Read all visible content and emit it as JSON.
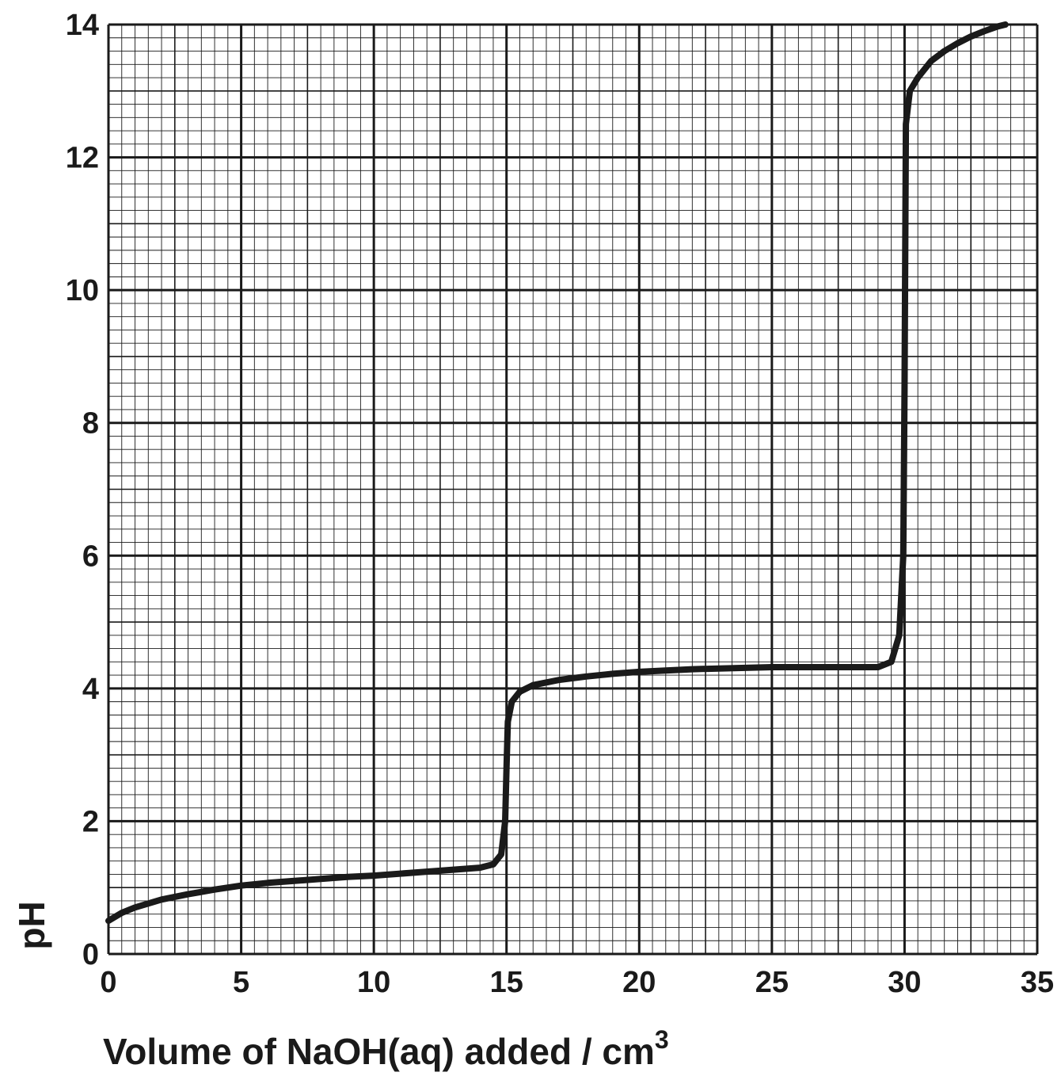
{
  "chart_data": {
    "type": "line",
    "title": "",
    "xlabel": "Volume of NaOH(aq) added / cm",
    "xlabel_superscript": "3",
    "ylabel": "pH",
    "xlim": [
      0,
      35
    ],
    "ylim": [
      0,
      14
    ],
    "x_ticks": [
      "0",
      "5",
      "10",
      "15",
      "20",
      "25",
      "30",
      "35"
    ],
    "y_ticks": [
      "0",
      "2",
      "4",
      "6",
      "8",
      "10",
      "12",
      "14"
    ],
    "grid": "graph paper (major every 5 cm3 / 2 pH, minor every 0.5 cm3 / 0.2 pH)",
    "line_color": "#1a1a1a",
    "series": [
      {
        "x": [
          0,
          0.5,
          1,
          2,
          3,
          4,
          5,
          6,
          7,
          8,
          9,
          10,
          11,
          12,
          13,
          14,
          14.5,
          14.8,
          14.95,
          15,
          15.05,
          15.2,
          15.5,
          16,
          17,
          18,
          19,
          20,
          21,
          22,
          23,
          24,
          25,
          26,
          27,
          28,
          29,
          29.5,
          29.8,
          29.95,
          30,
          30.05,
          30.2,
          30.5,
          31,
          31.5,
          32,
          32.5,
          33,
          33.5,
          33.8
        ],
        "y": [
          0.5,
          0.62,
          0.7,
          0.82,
          0.9,
          0.97,
          1.03,
          1.07,
          1.1,
          1.13,
          1.16,
          1.18,
          1.21,
          1.24,
          1.27,
          1.3,
          1.35,
          1.5,
          2.0,
          2.8,
          3.5,
          3.8,
          3.95,
          4.05,
          4.13,
          4.18,
          4.22,
          4.25,
          4.27,
          4.29,
          4.3,
          4.31,
          4.32,
          4.32,
          4.32,
          4.32,
          4.32,
          4.4,
          4.8,
          6.0,
          8.5,
          12.5,
          13.0,
          13.2,
          13.45,
          13.6,
          13.72,
          13.82,
          13.9,
          13.97,
          14.0
        ]
      }
    ]
  }
}
